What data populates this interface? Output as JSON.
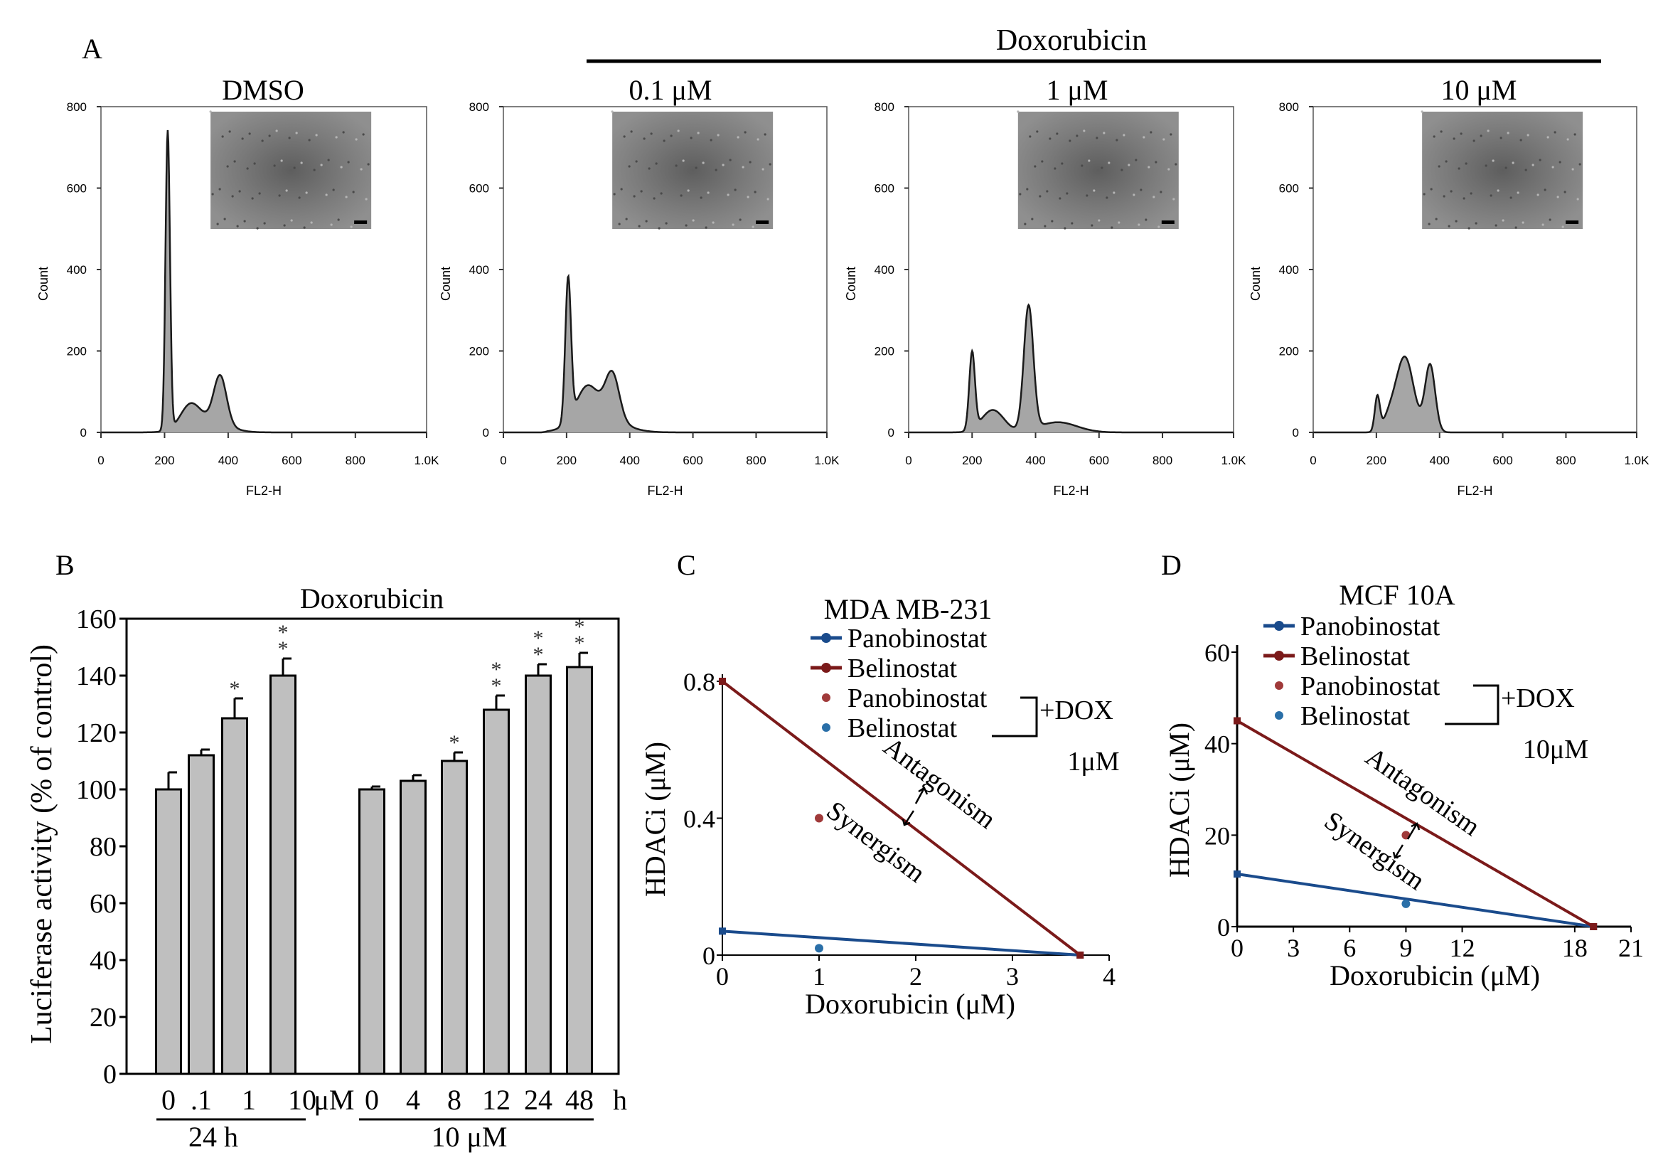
{
  "panel_labels": {
    "a": "A",
    "b": "B",
    "c": "C",
    "d": "D"
  },
  "doxorubicin_header": "Doxorubicin",
  "histogram_panels": [
    {
      "title": "DMSO",
      "peaks": [
        [
          210,
          735,
          7
        ],
        [
          280,
          50,
          30
        ],
        [
          375,
          118,
          20
        ],
        [
          330,
          30,
          60
        ]
      ]
    },
    {
      "title": "0.1 μM",
      "peaks": [
        [
          205,
          350,
          9
        ],
        [
          265,
          80,
          35
        ],
        [
          345,
          112,
          22
        ],
        [
          300,
          40,
          70
        ]
      ]
    },
    {
      "title": "1 μM",
      "peaks": [
        [
          200,
          190,
          9
        ],
        [
          265,
          55,
          35
        ],
        [
          378,
          305,
          15
        ],
        [
          470,
          25,
          60
        ]
      ]
    },
    {
      "title": "10 μM",
      "peaks": [
        [
          203,
          85,
          8
        ],
        [
          290,
          185,
          28
        ],
        [
          370,
          165,
          16
        ],
        [
          240,
          30,
          20
        ]
      ]
    }
  ],
  "histogram_axes": {
    "ylabel": "Count",
    "xlabel": "FL2-H",
    "x_ticks": [
      "0",
      "200",
      "400",
      "600",
      "800",
      "1.0K"
    ],
    "y_ticks": [
      "0",
      "200",
      "400",
      "600",
      "800"
    ],
    "xlim": [
      0,
      1024
    ],
    "ylim": [
      0,
      800
    ]
  },
  "chart_data": [
    {
      "type": "bar",
      "panel": "B",
      "title": "Doxorubicin",
      "ylabel": "Luciferase activity (% of control)",
      "ylim": [
        0,
        160
      ],
      "y_ticks": [
        "0",
        "20",
        "40",
        "60",
        "80",
        "100",
        "120",
        "140",
        "160"
      ],
      "groups": [
        {
          "categories": [
            "0",
            ".1",
            "1",
            "10"
          ],
          "values": [
            100,
            112,
            125,
            140
          ],
          "errors": [
            6,
            2,
            7,
            6
          ],
          "significance": [
            "",
            "",
            "*",
            "**"
          ],
          "unit": "μM",
          "group_label": "24 h"
        },
        {
          "categories": [
            "0",
            "4",
            "8",
            "12",
            "24",
            "48"
          ],
          "values": [
            100,
            103,
            110,
            128,
            140,
            143
          ],
          "errors": [
            1,
            2,
            3,
            5,
            4,
            5
          ],
          "significance": [
            "",
            "",
            "*",
            "**",
            "**",
            "**"
          ],
          "unit": "h",
          "group_label": "10 μM"
        }
      ]
    },
    {
      "type": "line",
      "panel": "C",
      "title": "MDA MB-231",
      "xlabel": "Doxorubicin (μM)",
      "ylabel": "HDACi (μM)",
      "xlim": [
        0,
        4
      ],
      "ylim": [
        0,
        0.8
      ],
      "x_ticks": [
        "0",
        "1",
        "2",
        "3",
        "4"
      ],
      "y_ticks": [
        "0",
        "0.4",
        "0.8"
      ],
      "series": [
        {
          "name": "Panobinostat",
          "color": "#1a4b8c",
          "x": [
            0,
            3.7
          ],
          "y": [
            0.07,
            0
          ]
        },
        {
          "name": "Belinostat",
          "color": "#7b1a1a",
          "x": [
            0,
            3.7
          ],
          "y": [
            0.8,
            0
          ]
        }
      ],
      "points": [
        {
          "name": "Panobinostat",
          "color": "#a03a3a",
          "x": 1.0,
          "y": 0.4
        },
        {
          "name": "Belinostat",
          "color": "#2a6fa8",
          "x": 1.0,
          "y": 0.02
        }
      ],
      "legend_combo_labels": [
        "Panobinostat",
        "Belinostat"
      ],
      "dox_label": "+DOX",
      "dox_conc": "1μM",
      "antagonism": "Antagonism",
      "synergism": "Synergism"
    },
    {
      "type": "line",
      "panel": "D",
      "title": "MCF 10A",
      "xlabel": "Doxorubicin (μM)",
      "ylabel": "HDACi (μM)",
      "xlim": [
        0,
        21
      ],
      "ylim": [
        0,
        60
      ],
      "x_ticks": [
        "0",
        "3",
        "6",
        "9",
        "12",
        "18",
        "21"
      ],
      "y_ticks": [
        "0",
        "20",
        "40",
        "60"
      ],
      "series": [
        {
          "name": "Panobinostat",
          "color": "#1a4b8c",
          "x": [
            0,
            19
          ],
          "y": [
            11.5,
            0
          ]
        },
        {
          "name": "Belinostat",
          "color": "#7b1a1a",
          "x": [
            0,
            19
          ],
          "y": [
            45,
            0
          ]
        }
      ],
      "points": [
        {
          "name": "Panobinostat",
          "color": "#a03a3a",
          "x": 9,
          "y": 20
        },
        {
          "name": "Belinostat",
          "color": "#2a6fa8",
          "x": 9,
          "y": 5
        }
      ],
      "legend_combo_labels": [
        "Panobinostat",
        "Belinostat"
      ],
      "dox_label": "+DOX",
      "dox_conc": "10μM",
      "antagonism": "Antagonism",
      "synergism": "Synergism"
    }
  ]
}
